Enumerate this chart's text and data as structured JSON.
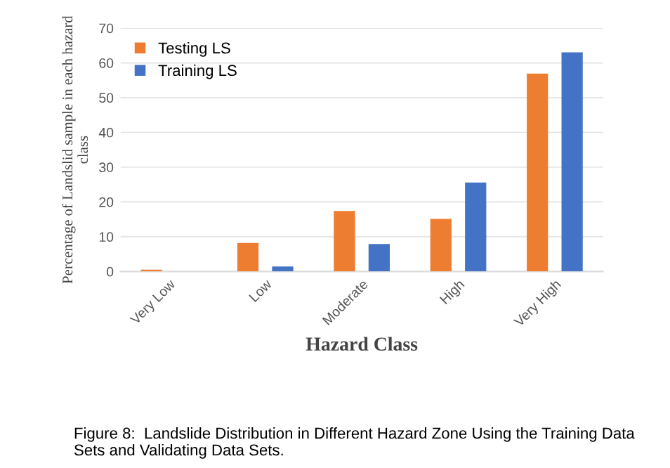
{
  "chart_data": {
    "type": "bar",
    "xlabel": "Hazard Class",
    "ylabel": "Percentage of Landslid sample in each hazard class",
    "categories": [
      "Very Low",
      "Low",
      "Moderate",
      "High",
      "Very High"
    ],
    "series": [
      {
        "name": "Testing LS",
        "color": "#ed7d31",
        "values": [
          0.5,
          8.2,
          17.4,
          15.1,
          56.9
        ]
      },
      {
        "name": "Training LS",
        "color": "#4472c4",
        "values": [
          0,
          1.4,
          7.9,
          25.6,
          63
        ]
      }
    ],
    "ylim": [
      0,
      70
    ],
    "yticks": [
      0,
      10,
      20,
      30,
      40,
      50,
      60,
      70
    ],
    "grid": "y",
    "legend": "top left",
    "annotations": [
      "Figure 8:  Landslide Distribution in Different Hazard Zone Using the Training Data Sets and Validating Data Sets."
    ]
  }
}
